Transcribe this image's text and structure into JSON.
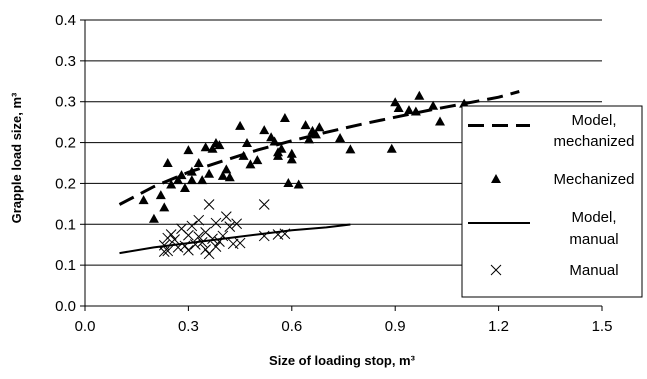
{
  "chart_data": {
    "type": "scatter",
    "xlabel": "Size of loading stop, m³",
    "ylabel": "Grapple load size, m³",
    "xlim": [
      0,
      1.5
    ],
    "ylim": [
      0,
      0.4
    ],
    "x_ticks": [
      "0.0",
      "0.3",
      "0.6",
      "0.9",
      "1.2",
      "1.5"
    ],
    "y_ticks": [
      "0.0",
      "0.1",
      "0.1",
      "0.2",
      "0.2",
      "0.3",
      "0.3",
      "0.4"
    ],
    "grid": "horizontal",
    "legend_position": "right",
    "series": [
      {
        "name": "Model, mechanized",
        "kind": "line",
        "style": "dashed",
        "x": [
          0.1,
          0.2,
          0.3,
          0.4,
          0.5,
          0.6,
          0.7,
          0.8,
          0.9,
          1.0,
          1.1,
          1.2,
          1.26
        ],
        "y": [
          0.142,
          0.167,
          0.187,
          0.203,
          0.218,
          0.231,
          0.243,
          0.254,
          0.264,
          0.274,
          0.283,
          0.292,
          0.3
        ]
      },
      {
        "name": "Mechanized",
        "kind": "points",
        "marker": "triangle",
        "x": [
          0.17,
          0.2,
          0.22,
          0.23,
          0.24,
          0.25,
          0.27,
          0.28,
          0.29,
          0.3,
          0.31,
          0.31,
          0.33,
          0.34,
          0.35,
          0.36,
          0.37,
          0.38,
          0.39,
          0.4,
          0.41,
          0.42,
          0.45,
          0.46,
          0.47,
          0.48,
          0.5,
          0.52,
          0.54,
          0.55,
          0.56,
          0.56,
          0.57,
          0.58,
          0.59,
          0.6,
          0.6,
          0.62,
          0.64,
          0.65,
          0.66,
          0.67,
          0.68,
          0.74,
          0.77,
          0.89,
          0.9,
          0.91,
          0.94,
          0.96,
          0.97,
          1.01,
          1.03,
          1.1
        ],
        "y": [
          0.148,
          0.122,
          0.155,
          0.138,
          0.2,
          0.17,
          0.176,
          0.183,
          0.165,
          0.218,
          0.176,
          0.188,
          0.2,
          0.176,
          0.222,
          0.185,
          0.22,
          0.228,
          0.225,
          0.182,
          0.191,
          0.18,
          0.252,
          0.21,
          0.228,
          0.198,
          0.204,
          0.246,
          0.236,
          0.23,
          0.215,
          0.21,
          0.22,
          0.263,
          0.172,
          0.205,
          0.213,
          0.17,
          0.253,
          0.233,
          0.245,
          0.24,
          0.25,
          0.235,
          0.219,
          0.22,
          0.285,
          0.277,
          0.274,
          0.272,
          0.294,
          0.28,
          0.258,
          0.283
        ]
      },
      {
        "name": "Model, manual",
        "kind": "line",
        "style": "solid",
        "x": [
          0.1,
          0.2,
          0.3,
          0.4,
          0.5,
          0.6,
          0.7,
          0.77
        ],
        "y": [
          0.074,
          0.082,
          0.088,
          0.094,
          0.1,
          0.106,
          0.11,
          0.114
        ]
      },
      {
        "name": "Manual",
        "kind": "points",
        "marker": "x",
        "x": [
          0.23,
          0.23,
          0.24,
          0.24,
          0.25,
          0.26,
          0.27,
          0.28,
          0.29,
          0.3,
          0.3,
          0.31,
          0.32,
          0.33,
          0.33,
          0.34,
          0.35,
          0.35,
          0.36,
          0.36,
          0.37,
          0.38,
          0.38,
          0.39,
          0.4,
          0.41,
          0.42,
          0.43,
          0.44,
          0.45,
          0.52,
          0.52,
          0.56,
          0.58
        ],
        "y": [
          0.076,
          0.085,
          0.077,
          0.095,
          0.1,
          0.093,
          0.082,
          0.108,
          0.084,
          0.078,
          0.099,
          0.112,
          0.086,
          0.097,
          0.12,
          0.089,
          0.103,
          0.079,
          0.073,
          0.142,
          0.094,
          0.083,
          0.116,
          0.09,
          0.098,
          0.125,
          0.111,
          0.087,
          0.115,
          0.088,
          0.098,
          0.142,
          0.1,
          0.101
        ]
      }
    ],
    "legend": [
      {
        "label": "Model,",
        "label2": "mechanized",
        "series": "Model, mechanized"
      },
      {
        "label": "Mechanized",
        "label2": "",
        "series": "Mechanized"
      },
      {
        "label": "Model,",
        "label2": "manual",
        "series": "Model, manual"
      },
      {
        "label": "Manual",
        "label2": "",
        "series": "Manual"
      }
    ]
  }
}
